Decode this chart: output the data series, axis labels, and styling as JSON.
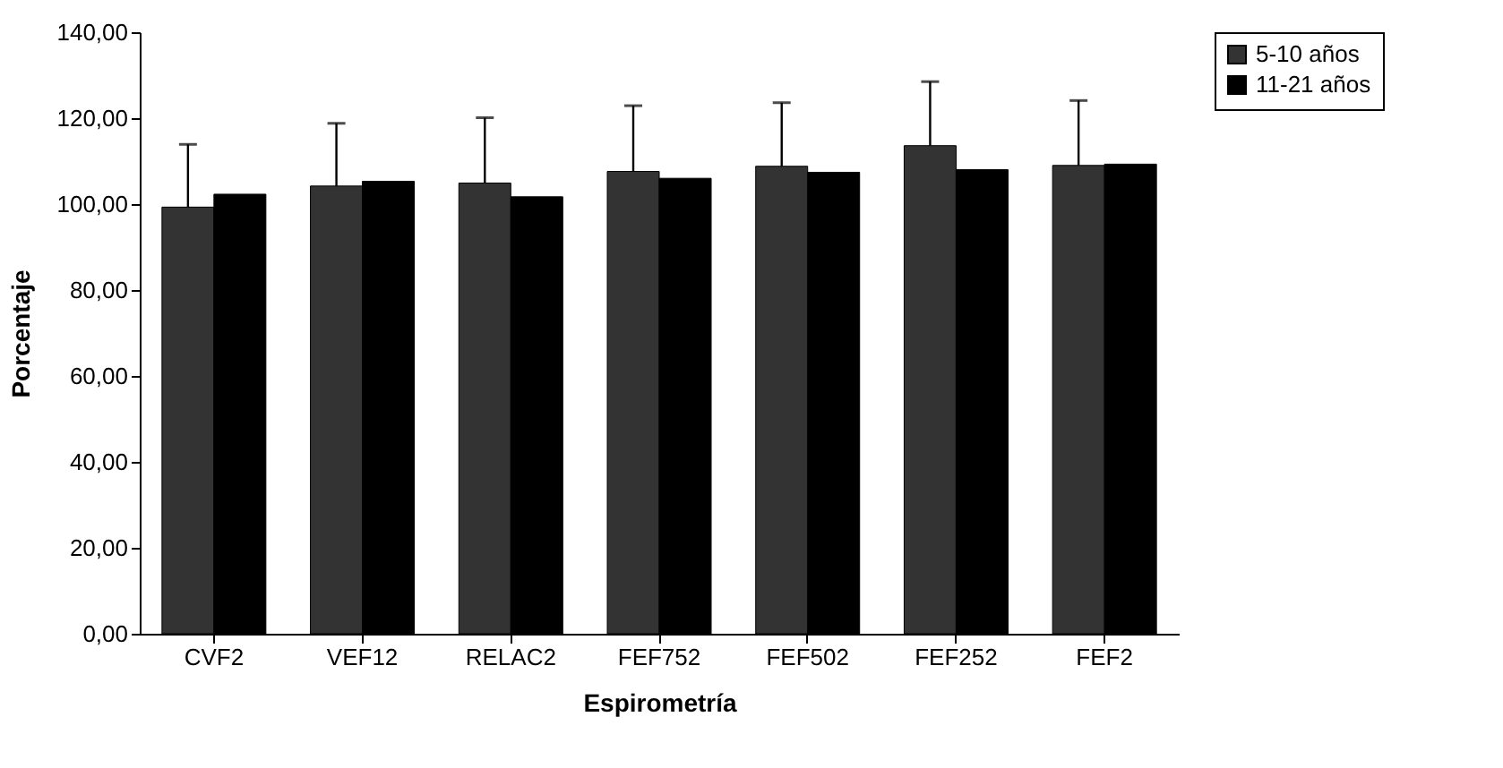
{
  "chart_data": {
    "type": "bar",
    "xlabel": "Espirometría",
    "ylabel": "Porcentaje",
    "categories": [
      "CVF2",
      "VEF12",
      "RELAC2",
      "FEF752",
      "FEF502",
      "FEF252",
      "FEF2"
    ],
    "series": [
      {
        "name": "5-10 años",
        "color": "#333333",
        "values": [
          99.3,
          104.2,
          104.9,
          107.6,
          108.8,
          113.6,
          109.0
        ],
        "errors": [
          [
            99.3,
            113.9
          ],
          [
            104.2,
            118.8
          ],
          [
            104.9,
            120.1
          ],
          [
            107.6,
            122.9
          ],
          [
            108.8,
            123.6
          ],
          [
            113.6,
            128.5
          ],
          [
            109.0,
            124.1
          ]
        ]
      },
      {
        "name": "11-21 años",
        "color": "#000000",
        "values": [
          102.3,
          105.3,
          101.7,
          106.0,
          107.4,
          108.0,
          109.3
        ]
      }
    ],
    "ylim": [
      0,
      140
    ],
    "yticks": [
      {
        "value": 0,
        "label": "0,00"
      },
      {
        "value": 20,
        "label": "20,00"
      },
      {
        "value": 40,
        "label": "40,00"
      },
      {
        "value": 60,
        "label": "60,00"
      },
      {
        "value": 80,
        "label": "80,00"
      },
      {
        "value": 100,
        "label": "100,00"
      },
      {
        "value": 120,
        "label": "120,00"
      },
      {
        "value": 140,
        "label": "140,00"
      }
    ],
    "grid": false,
    "legend": "right"
  }
}
